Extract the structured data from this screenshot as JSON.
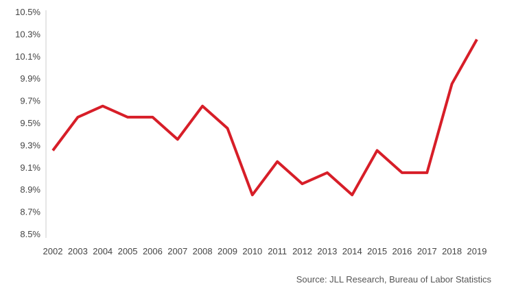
{
  "chart_data": {
    "type": "line",
    "title": "",
    "xlabel": "",
    "ylabel": "",
    "categories": [
      "2002",
      "2003",
      "2004",
      "2005",
      "2006",
      "2007",
      "2008",
      "2009",
      "2010",
      "2011",
      "2012",
      "2013",
      "2014",
      "2015",
      "2016",
      "2017",
      "2018",
      "2019"
    ],
    "series": [
      {
        "values": [
          9.25,
          9.55,
          9.65,
          9.55,
          9.55,
          9.35,
          9.65,
          9.45,
          8.85,
          9.15,
          8.95,
          9.05,
          8.85,
          9.25,
          9.05,
          9.05,
          9.85,
          10.25
        ],
        "color": "#d71e28"
      }
    ],
    "ylim": [
      8.5,
      10.5
    ],
    "yticks": [
      8.5,
      8.7,
      8.9,
      9.1,
      9.3,
      9.5,
      9.7,
      9.9,
      10.1,
      10.3,
      10.5
    ],
    "ytick_labels": [
      "8.5%",
      "8.7%",
      "8.9%",
      "9.1%",
      "9.3%",
      "9.5%",
      "9.7%",
      "9.9%",
      "10.1%",
      "10.3%",
      "10.5%"
    ],
    "grid": false,
    "legend": "none",
    "y_axis_line_color": "#cccccc"
  },
  "footer": {
    "source": "Source: JLL Research, Bureau of Labor Statistics"
  }
}
